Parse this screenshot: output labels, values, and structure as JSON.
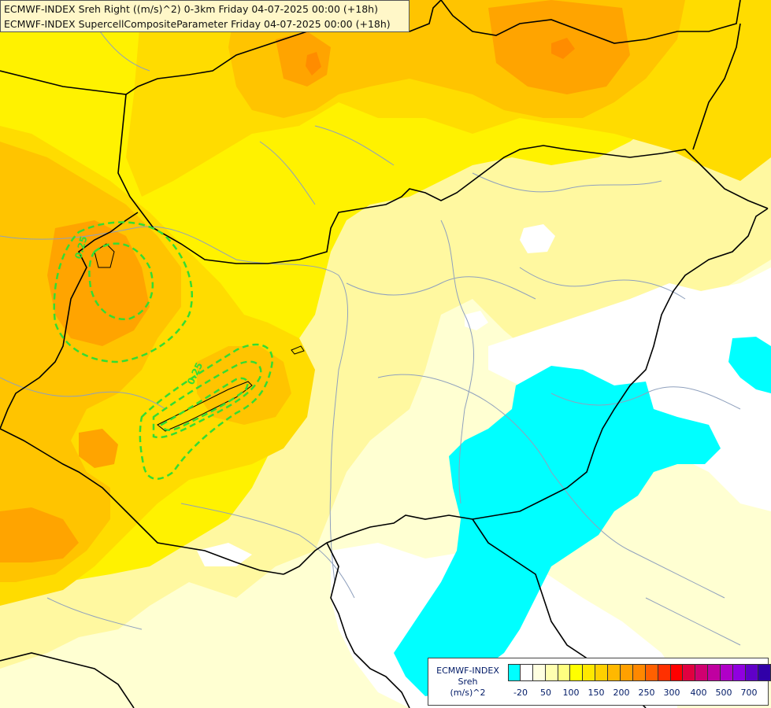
{
  "header": {
    "line1": "ECMWF-INDEX Sreh Right ((m/s)^2) 0-3km Friday 04-07-2025 00:00 (+18h)",
    "line2": "ECMWF-INDEX SupercellCompositeParameter Friday 04-07-2025 00:00 (+18h)"
  },
  "contours": {
    "label_west": "0.25",
    "label_center": "0.25",
    "color": "#33dd33"
  },
  "legend": {
    "title1": "ECMWF-INDEX",
    "title2": "Sreh",
    "unit": "(m/s)^2",
    "colors": [
      "#00ffff",
      "#ffffff",
      "#ffffe0",
      "#ffffb0",
      "#ffff80",
      "#ffff00",
      "#ffe800",
      "#ffd000",
      "#ffb800",
      "#ffa000",
      "#ff8800",
      "#ff6000",
      "#ff3000",
      "#ff0000",
      "#e00040",
      "#d00070",
      "#c000a0",
      "#b000c8",
      "#9000e0",
      "#6000c8",
      "#3000a8",
      "#000080"
    ],
    "labels": [
      "-20",
      "50",
      "100",
      "150",
      "200",
      "250",
      "300",
      "400",
      "500",
      "700"
    ]
  },
  "palette": {
    "cyan": "#00ffff",
    "white": "#ffffff",
    "pale_yellow": "#ffffd2",
    "light_yellow": "#fff8a0",
    "yellow": "#fff200",
    "gold": "#ffdc00",
    "orange_light": "#ffc400",
    "orange": "#ffa400",
    "border": "#000000",
    "river": "#8fa0bd"
  }
}
